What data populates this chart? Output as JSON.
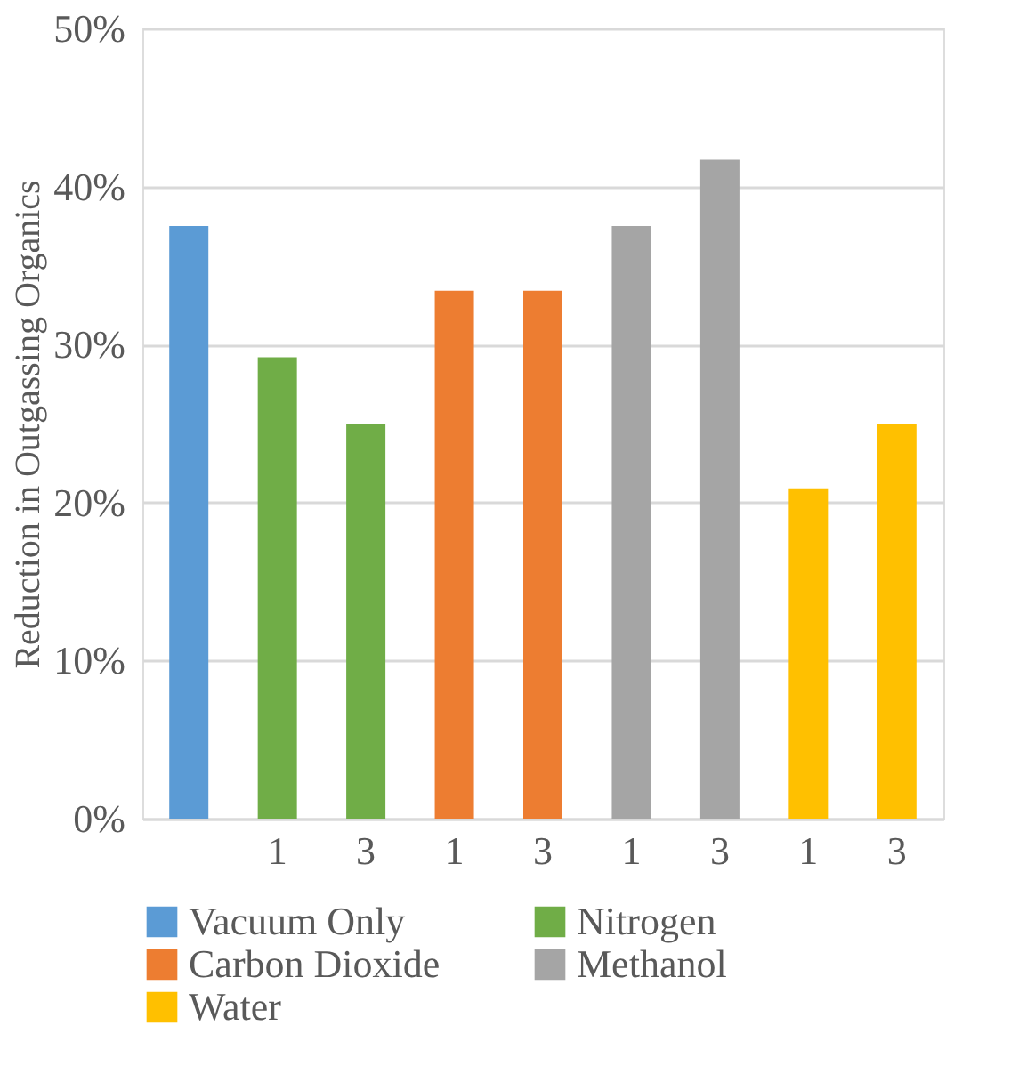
{
  "chart_data": {
    "type": "bar",
    "ylabel": "Reduction in Outgassing Organics",
    "categories": [
      null,
      "1",
      "3",
      "1",
      "3",
      "1",
      "3",
      "1",
      "3"
    ],
    "series": [
      {
        "name": "Vacuum Only",
        "color": "#5b9bd5",
        "values": [
          37.5,
          null,
          null,
          null,
          null,
          null,
          null,
          null,
          null
        ]
      },
      {
        "name": "Nitrogen",
        "color": "#70ad47",
        "values": [
          null,
          29.2,
          25.0,
          null,
          null,
          null,
          null,
          null,
          null
        ]
      },
      {
        "name": "Carbon Dioxide",
        "color": "#ed7d31",
        "values": [
          null,
          null,
          null,
          33.4,
          33.4,
          null,
          null,
          null,
          null
        ]
      },
      {
        "name": "Methanol",
        "color": "#a5a5a5",
        "values": [
          null,
          null,
          null,
          null,
          null,
          37.5,
          41.7,
          null,
          null
        ]
      },
      {
        "name": "Water",
        "color": "#ffc000",
        "values": [
          null,
          null,
          null,
          null,
          null,
          null,
          null,
          20.9,
          25.0
        ]
      }
    ],
    "ylim": [
      0,
      50
    ],
    "yticks": [
      {
        "value": 0,
        "label": "0%"
      },
      {
        "value": 10,
        "label": "10%"
      },
      {
        "value": 20,
        "label": "20%"
      },
      {
        "value": 30,
        "label": "30%"
      },
      {
        "value": 40,
        "label": "40%"
      },
      {
        "value": 50,
        "label": "50%"
      }
    ],
    "grid": "y",
    "legend": "bottom"
  }
}
